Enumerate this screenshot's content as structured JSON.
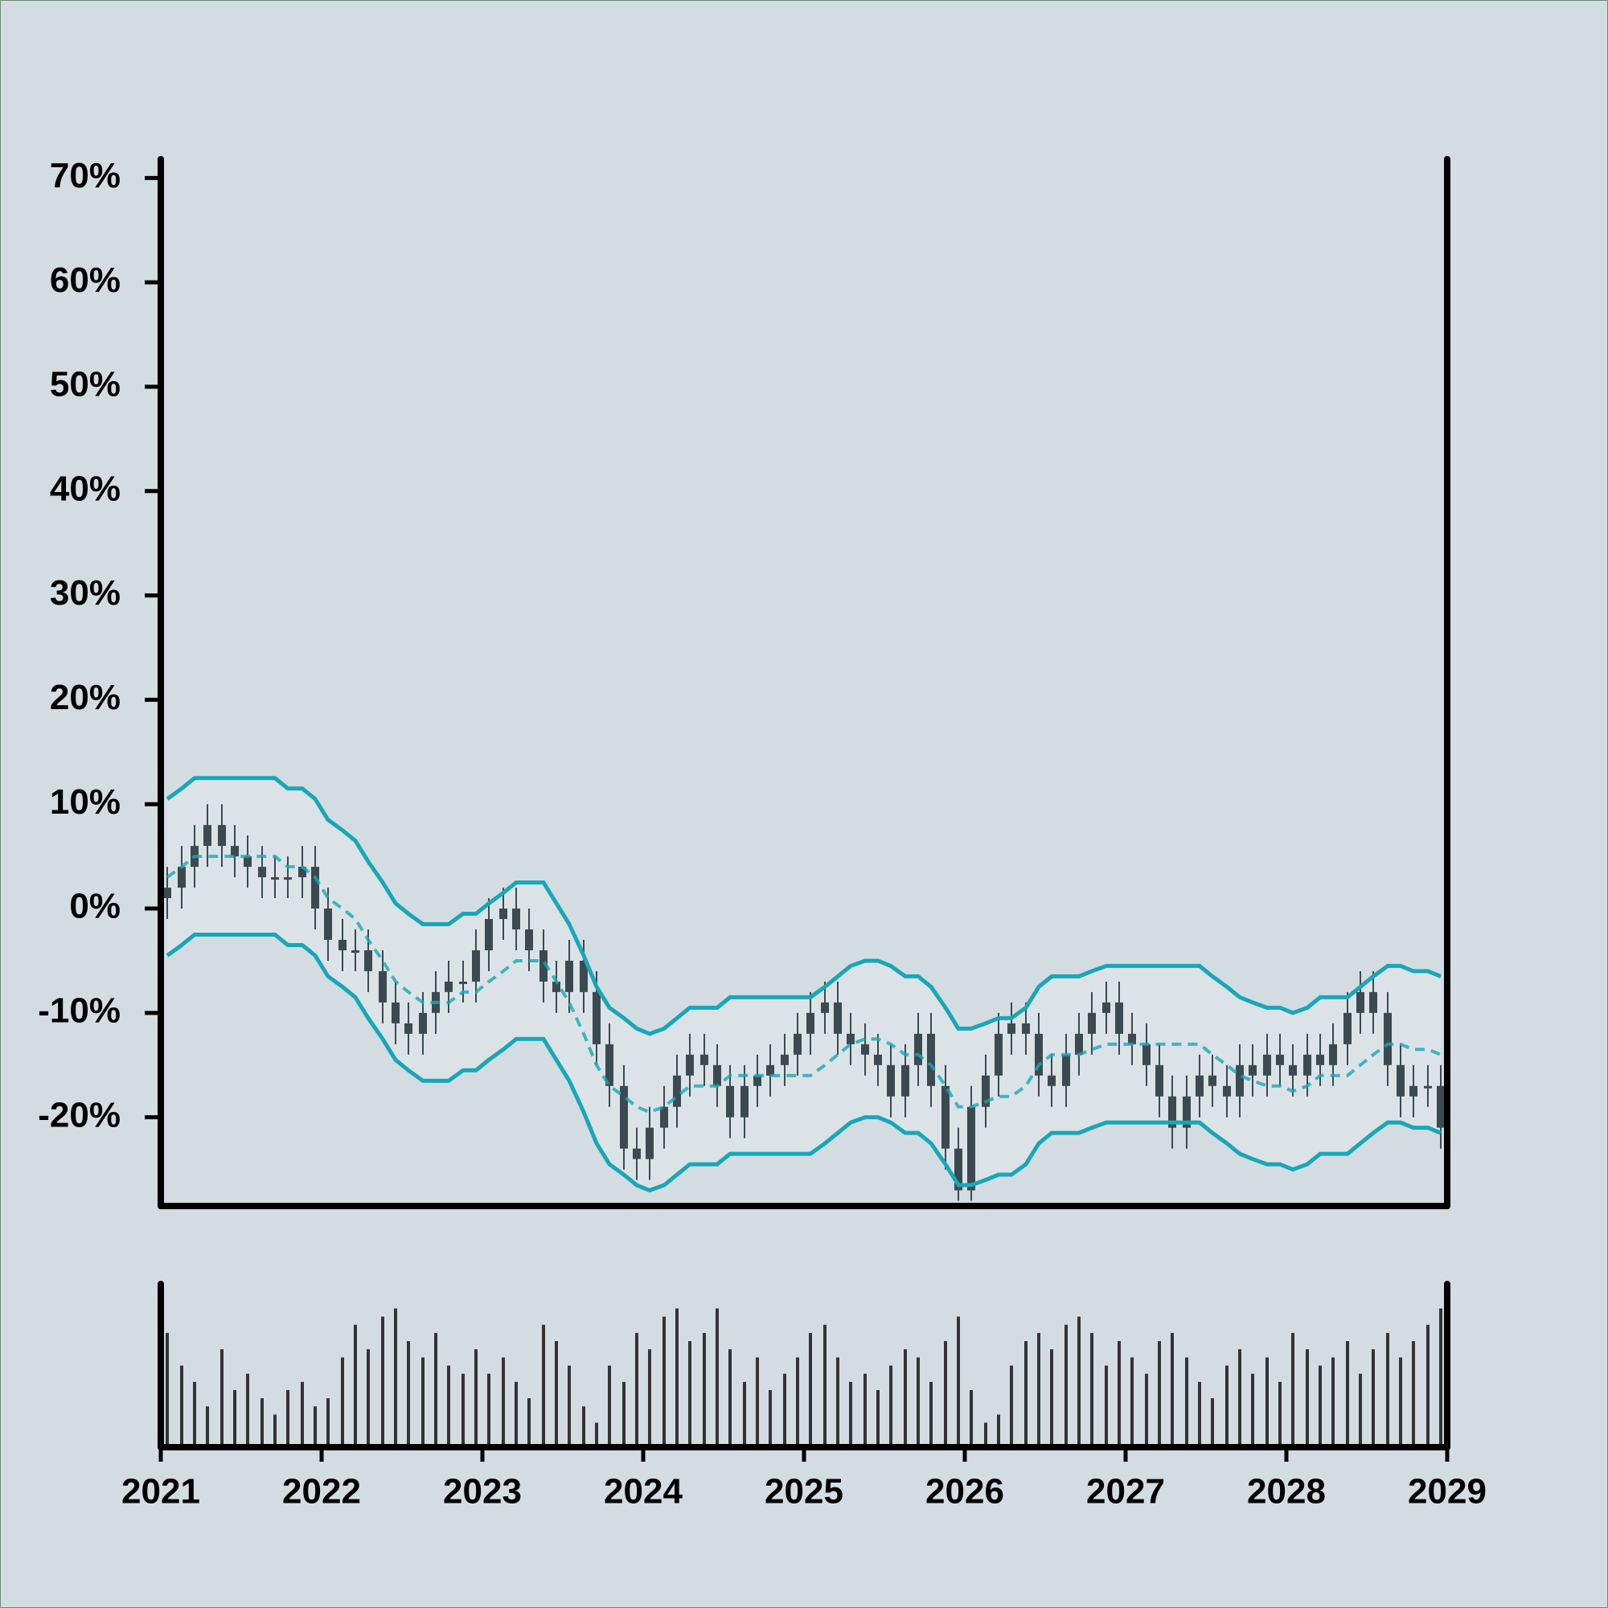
{
  "chart_data": {
    "type": "candlestick",
    "x": [
      2021.04,
      2021.13,
      2021.21,
      2021.29,
      2021.38,
      2021.46,
      2021.54,
      2021.63,
      2021.71,
      2021.79,
      2021.88,
      2021.96,
      2022.04,
      2022.13,
      2022.21,
      2022.29,
      2022.38,
      2022.46,
      2022.54,
      2022.63,
      2022.71,
      2022.79,
      2022.88,
      2022.96,
      2023.04,
      2023.13,
      2023.21,
      2023.29,
      2023.38,
      2023.46,
      2023.54,
      2023.63,
      2023.71,
      2023.79,
      2023.88,
      2023.96,
      2024.04,
      2024.13,
      2024.21,
      2024.29,
      2024.38,
      2024.46,
      2024.54,
      2024.63,
      2024.71,
      2024.79,
      2024.88,
      2024.96,
      2025.04,
      2025.13,
      2025.21,
      2025.29,
      2025.38,
      2025.46,
      2025.54,
      2025.63,
      2025.71,
      2025.79,
      2025.88,
      2025.96,
      2026.04,
      2026.13,
      2026.21,
      2026.29,
      2026.38,
      2026.46,
      2026.54,
      2026.63,
      2026.71,
      2026.79,
      2026.88,
      2026.96,
      2027.04,
      2027.13,
      2027.21,
      2027.29,
      2027.38,
      2027.46,
      2027.54,
      2027.63,
      2027.71,
      2027.79,
      2027.88,
      2027.96,
      2028.04,
      2028.13,
      2028.21,
      2028.29,
      2028.38,
      2028.46,
      2028.54,
      2028.63,
      2028.71,
      2028.79,
      2028.88,
      2028.96
    ],
    "open": [
      1,
      2,
      4,
      6,
      8,
      6,
      5,
      4,
      3,
      3,
      3,
      4,
      0,
      -3,
      -4,
      -4,
      -6,
      -9,
      -11,
      -12,
      -10,
      -8,
      -7,
      -7,
      -4,
      -1,
      0,
      -2,
      -4,
      -7,
      -8,
      -5,
      -8,
      -13,
      -17,
      -23,
      -24,
      -21,
      -19,
      -16,
      -14,
      -15,
      -17,
      -20,
      -17,
      -16,
      -15,
      -14,
      -12,
      -10,
      -9,
      -12,
      -13,
      -14,
      -15,
      -18,
      -15,
      -12,
      -17,
      -23,
      -27,
      -19,
      -16,
      -12,
      -11,
      -12,
      -16,
      -17,
      -14,
      -12,
      -10,
      -9,
      -12,
      -13,
      -15,
      -18,
      -21,
      -18,
      -16,
      -17,
      -18,
      -15,
      -16,
      -14,
      -15,
      -16,
      -14,
      -15,
      -13,
      -10,
      -8,
      -10,
      -15,
      -18,
      -17,
      -17
    ],
    "high": [
      4,
      6,
      8,
      10,
      10,
      8,
      7,
      6,
      5,
      5,
      6,
      6,
      2,
      -1,
      -2,
      -2,
      -4,
      -7,
      -9,
      -8,
      -6,
      -5,
      -5,
      -2,
      1,
      2,
      2,
      0,
      -2,
      -5,
      -3,
      -3,
      -6,
      -11,
      -15,
      -21,
      -19,
      -17,
      -14,
      -12,
      -12,
      -13,
      -15,
      -15,
      -14,
      -13,
      -12,
      -10,
      -8,
      -7,
      -7,
      -10,
      -11,
      -12,
      -13,
      -13,
      -10,
      -10,
      -15,
      -21,
      -17,
      -14,
      -10,
      -9,
      -9,
      -10,
      -14,
      -12,
      -10,
      -8,
      -7,
      -7,
      -10,
      -11,
      -13,
      -16,
      -16,
      -14,
      -14,
      -15,
      -13,
      -13,
      -12,
      -12,
      -13,
      -12,
      -12,
      -11,
      -8,
      -6,
      -6,
      -8,
      -13,
      -15,
      -15,
      -15
    ],
    "low": [
      -1,
      0,
      2,
      4,
      4,
      3,
      2,
      1,
      1,
      1,
      1,
      -2,
      -5,
      -6,
      -6,
      -8,
      -11,
      -13,
      -14,
      -14,
      -12,
      -10,
      -9,
      -9,
      -6,
      -3,
      -4,
      -6,
      -9,
      -10,
      -10,
      -10,
      -15,
      -19,
      -25,
      -26,
      -26,
      -23,
      -21,
      -18,
      -17,
      -19,
      -22,
      -22,
      -19,
      -18,
      -17,
      -16,
      -14,
      -12,
      -14,
      -15,
      -16,
      -17,
      -20,
      -20,
      -17,
      -19,
      -25,
      -28,
      -28,
      -21,
      -18,
      -14,
      -14,
      -18,
      -19,
      -19,
      -16,
      -14,
      -12,
      -14,
      -15,
      -17,
      -20,
      -23,
      -23,
      -20,
      -19,
      -20,
      -20,
      -18,
      -18,
      -17,
      -18,
      -18,
      -17,
      -17,
      -15,
      -12,
      -12,
      -17,
      -20,
      -20,
      -19,
      -23
    ],
    "close": [
      2,
      4,
      6,
      8,
      6,
      5,
      4,
      3,
      3,
      3,
      4,
      0,
      -3,
      -4,
      -4,
      -6,
      -9,
      -11,
      -12,
      -10,
      -8,
      -7,
      -7,
      -4,
      -1,
      0,
      -2,
      -4,
      -7,
      -8,
      -5,
      -8,
      -13,
      -17,
      -23,
      -24,
      -21,
      -19,
      -16,
      -14,
      -15,
      -17,
      -20,
      -17,
      -16,
      -15,
      -14,
      -12,
      -10,
      -9,
      -12,
      -13,
      -14,
      -15,
      -18,
      -15,
      -12,
      -17,
      -23,
      -27,
      -19,
      -16,
      -12,
      -11,
      -12,
      -16,
      -17,
      -14,
      -12,
      -10,
      -9,
      -12,
      -13,
      -15,
      -18,
      -21,
      -18,
      -16,
      -17,
      -18,
      -15,
      -16,
      -14,
      -15,
      -16,
      -14,
      -15,
      -13,
      -10,
      -8,
      -10,
      -15,
      -18,
      -17,
      -17,
      -21
    ],
    "bands": {
      "upper": [
        10.5,
        11.5,
        12.5,
        12.5,
        12.5,
        12.5,
        12.5,
        12.5,
        12.5,
        11.5,
        11.5,
        10.5,
        8.5,
        7.5,
        6.5,
        4.5,
        2.5,
        0.5,
        -0.5,
        -1.5,
        -1.5,
        -1.5,
        -0.5,
        -0.5,
        0.5,
        1.5,
        2.5,
        2.5,
        2.5,
        0.5,
        -1.5,
        -4.5,
        -7.5,
        -9.5,
        -10.5,
        -11.5,
        -12,
        -11.5,
        -10.5,
        -9.5,
        -9.5,
        -9.5,
        -8.5,
        -8.5,
        -8.5,
        -8.5,
        -8.5,
        -8.5,
        -8.5,
        -7.5,
        -6.5,
        -5.5,
        -5,
        -5,
        -5.5,
        -6.5,
        -6.5,
        -7.5,
        -9.5,
        -11.5,
        -11.5,
        -11,
        -10.5,
        -10.5,
        -9.5,
        -7.5,
        -6.5,
        -6.5,
        -6.5,
        -6,
        -5.5,
        -5.5,
        -5.5,
        -5.5,
        -5.5,
        -5.5,
        -5.5,
        -5.5,
        -6.5,
        -7.5,
        -8.5,
        -9,
        -9.5,
        -9.5,
        -10,
        -9.5,
        -8.5,
        -8.5,
        -8.5,
        -7.5,
        -6.5,
        -5.5,
        -5.5,
        -6,
        -6,
        -6.5
      ],
      "middle": [
        3,
        4,
        5,
        5,
        5,
        5,
        5,
        5,
        5,
        4,
        4,
        3,
        1,
        0,
        -1,
        -3,
        -5,
        -7,
        -8,
        -9,
        -9,
        -9,
        -8,
        -8,
        -7,
        -6,
        -5,
        -5,
        -5,
        -7,
        -9,
        -12,
        -15,
        -17,
        -18,
        -19,
        -19.5,
        -19,
        -18,
        -17,
        -17,
        -17,
        -16,
        -16,
        -16,
        -16,
        -16,
        -16,
        -16,
        -15,
        -14,
        -13,
        -12.5,
        -12.5,
        -13,
        -14,
        -14,
        -15,
        -17,
        -19,
        -19,
        -18.5,
        -18,
        -18,
        -17,
        -15,
        -14,
        -14,
        -14,
        -13.5,
        -13,
        -13,
        -13,
        -13,
        -13,
        -13,
        -13,
        -13,
        -14,
        -15,
        -16,
        -16.5,
        -17,
        -17,
        -17.5,
        -17,
        -16,
        -16,
        -16,
        -15,
        -14,
        -13,
        -13,
        -13.5,
        -13.5,
        -14
      ],
      "lower": [
        -4.5,
        -3.5,
        -2.5,
        -2.5,
        -2.5,
        -2.5,
        -2.5,
        -2.5,
        -2.5,
        -3.5,
        -3.5,
        -4.5,
        -6.5,
        -7.5,
        -8.5,
        -10.5,
        -12.5,
        -14.5,
        -15.5,
        -16.5,
        -16.5,
        -16.5,
        -15.5,
        -15.5,
        -14.5,
        -13.5,
        -12.5,
        -12.5,
        -12.5,
        -14.5,
        -16.5,
        -19.5,
        -22.5,
        -24.5,
        -25.5,
        -26.5,
        -27,
        -26.5,
        -25.5,
        -24.5,
        -24.5,
        -24.5,
        -23.5,
        -23.5,
        -23.5,
        -23.5,
        -23.5,
        -23.5,
        -23.5,
        -22.5,
        -21.5,
        -20.5,
        -20,
        -20,
        -20.5,
        -21.5,
        -21.5,
        -22.5,
        -24.5,
        -26.5,
        -26.5,
        -26,
        -25.5,
        -25.5,
        -24.5,
        -22.5,
        -21.5,
        -21.5,
        -21.5,
        -21,
        -20.5,
        -20.5,
        -20.5,
        -20.5,
        -20.5,
        -20.5,
        -20.5,
        -20.5,
        -21.5,
        -22.5,
        -23.5,
        -24,
        -24.5,
        -24.5,
        -25,
        -24.5,
        -23.5,
        -23.5,
        -23.5,
        -22.5,
        -21.5,
        -20.5,
        -20.5,
        -21,
        -21,
        -21.5
      ],
      "color": "#17a7b8"
    },
    "volume": [
      70,
      50,
      40,
      25,
      60,
      35,
      45,
      30,
      20,
      35,
      40,
      25,
      30,
      55,
      75,
      60,
      80,
      85,
      65,
      55,
      70,
      50,
      45,
      60,
      45,
      55,
      40,
      30,
      75,
      65,
      50,
      25,
      15,
      50,
      40,
      70,
      60,
      80,
      85,
      65,
      70,
      85,
      60,
      40,
      55,
      35,
      45,
      55,
      70,
      75,
      55,
      40,
      45,
      35,
      50,
      60,
      55,
      40,
      65,
      80,
      35,
      15,
      20,
      50,
      65,
      70,
      60,
      75,
      80,
      70,
      50,
      65,
      55,
      45,
      65,
      70,
      55,
      40,
      30,
      50,
      60,
      45,
      55,
      40,
      70,
      60,
      50,
      55,
      65,
      45,
      60,
      70,
      55,
      65,
      75,
      85
    ],
    "volume_lim": [
      0,
      100
    ],
    "candle_color": "#3b4a50",
    "volume_color": "#333333",
    "xlim": [
      2021,
      2029
    ],
    "xticks": [
      2021,
      2022,
      2023,
      2024,
      2025,
      2026,
      2027,
      2028,
      2029
    ],
    "ylim": [
      -28.5,
      71.8
    ],
    "yticks": [
      {
        "value": -20,
        "label": "-20%"
      },
      {
        "value": -10,
        "label": "-10%"
      },
      {
        "value": 0,
        "label": "0%"
      },
      {
        "value": 10,
        "label": "10%"
      },
      {
        "value": 20,
        "label": "20%"
      },
      {
        "value": 30,
        "label": "30%"
      },
      {
        "value": 40,
        "label": "40%"
      },
      {
        "value": 50,
        "label": "50%"
      },
      {
        "value": 60,
        "label": "60%"
      },
      {
        "value": 70,
        "label": "70%"
      }
    ]
  }
}
